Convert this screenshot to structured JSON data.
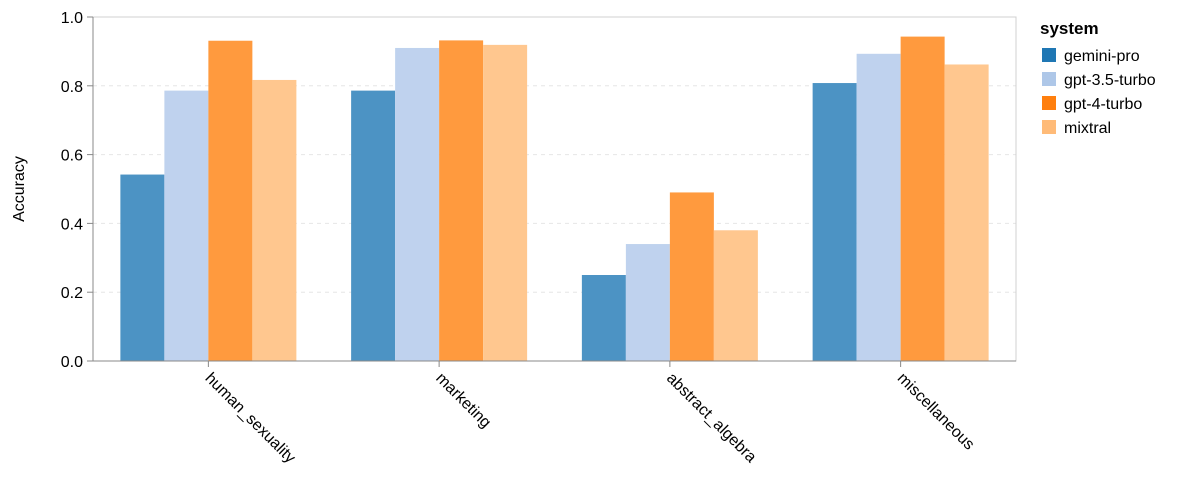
{
  "chart_data": {
    "type": "bar",
    "categories": [
      "human_sexuality",
      "marketing",
      "abstract_algebra",
      "miscellaneous"
    ],
    "series": [
      {
        "name": "gemini-pro",
        "color": "#4c93c4",
        "legend_color": "#1f77b4",
        "values": [
          0.542,
          0.786,
          0.25,
          0.808
        ]
      },
      {
        "name": "gpt-3.5-turbo",
        "color": "#bfd2ee",
        "legend_color": "#aec7e8",
        "values": [
          0.786,
          0.91,
          0.34,
          0.893
        ]
      },
      {
        "name": "gpt-4-turbo",
        "color": "#ff9a3e",
        "legend_color": "#ff7f0e",
        "values": [
          0.931,
          0.932,
          0.49,
          0.943
        ]
      },
      {
        "name": "mixtral",
        "color": "#ffc78f",
        "legend_color": "#ffbb78",
        "values": [
          0.817,
          0.919,
          0.38,
          0.862
        ]
      }
    ],
    "title": "",
    "xlabel": "",
    "ylabel": "Accuracy",
    "ylim": [
      0,
      1
    ],
    "yticks": [
      "0.0",
      "0.2",
      "0.4",
      "0.6",
      "0.8",
      "1.0"
    ],
    "grid": true,
    "legend": {
      "title": "system",
      "placement": "right"
    }
  }
}
